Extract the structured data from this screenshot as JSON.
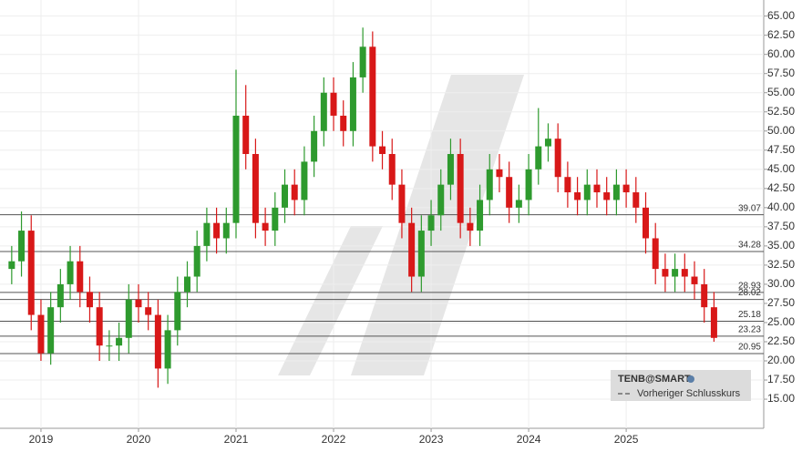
{
  "chart_data": {
    "type": "candlestick",
    "x": [
      2018.7,
      2018.8,
      2018.9,
      2019.0,
      2019.1,
      2019.2,
      2019.3,
      2019.4,
      2019.5,
      2019.6,
      2019.7,
      2019.8,
      2019.9,
      2020.0,
      2020.1,
      2020.2,
      2020.3,
      2020.4,
      2020.5,
      2020.6,
      2020.7,
      2020.8,
      2020.9,
      2021.0,
      2021.1,
      2021.2,
      2021.3,
      2021.4,
      2021.5,
      2021.6,
      2021.7,
      2021.8,
      2021.9,
      2022.0,
      2022.1,
      2022.2,
      2022.3,
      2022.4,
      2022.5,
      2022.6,
      2022.7,
      2022.8,
      2022.9,
      2023.0,
      2023.1,
      2023.2,
      2023.3,
      2023.4,
      2023.5,
      2023.6,
      2023.7,
      2023.8,
      2023.9,
      2024.0,
      2024.1,
      2024.2,
      2024.3,
      2024.4,
      2024.5,
      2024.6,
      2024.7,
      2024.8,
      2024.9,
      2025.0,
      2025.1,
      2025.2,
      2025.3,
      2025.4,
      2025.5,
      2025.6,
      2025.7,
      2025.8,
      2025.9
    ],
    "open": [
      32,
      33,
      37,
      26,
      21,
      27,
      30,
      33,
      29,
      27,
      22,
      22,
      23,
      28,
      27,
      26,
      19,
      24,
      29,
      31,
      35,
      38,
      36,
      38,
      52,
      47,
      38,
      37,
      40,
      43,
      41,
      46,
      50,
      55,
      52,
      50,
      57,
      61,
      48,
      47,
      43,
      38,
      31,
      37,
      39,
      43,
      47,
      38,
      37,
      41,
      45,
      44,
      40,
      41,
      45,
      48,
      49,
      44,
      42,
      41,
      43,
      42,
      41,
      43,
      42,
      40,
      36,
      32,
      31,
      32,
      31,
      30,
      27
    ],
    "high": [
      35,
      39.5,
      39,
      28,
      29,
      32,
      35,
      35,
      31,
      29,
      24,
      25,
      30,
      30,
      29,
      28,
      26,
      31,
      33,
      37,
      40,
      40,
      40,
      58,
      56,
      49,
      40,
      42,
      45,
      45,
      48,
      52,
      57,
      57,
      54,
      59,
      63.5,
      63,
      50,
      49,
      45,
      40,
      39,
      41,
      45,
      49,
      49,
      40,
      43,
      47,
      47,
      46,
      43,
      47,
      53,
      51,
      51,
      46,
      44,
      45,
      45,
      44,
      45,
      45,
      44,
      42,
      38,
      34,
      34,
      34,
      33,
      32,
      29
    ],
    "low": [
      30,
      31,
      24,
      20,
      19.5,
      25,
      28,
      27,
      25,
      20,
      20,
      20,
      21,
      25,
      24,
      16.5,
      17,
      22,
      27,
      29,
      33,
      34,
      34,
      36,
      45,
      36,
      35,
      35,
      38,
      39,
      39,
      44,
      48,
      50,
      48,
      48,
      55,
      46,
      45,
      41,
      36,
      29,
      29,
      35,
      37,
      41,
      36,
      35,
      35,
      39,
      42,
      38,
      38,
      39,
      43,
      46,
      42,
      40,
      39,
      39,
      40,
      39,
      39,
      40,
      38,
      34,
      30,
      29,
      29,
      29,
      28,
      25,
      22.5
    ],
    "close": [
      33,
      37,
      26,
      21,
      27,
      30,
      33,
      29,
      27,
      22,
      22,
      23,
      28,
      27,
      26,
      19,
      24,
      29,
      31,
      35,
      38,
      36,
      38,
      52,
      47,
      38,
      37,
      40,
      43,
      41,
      46,
      50,
      55,
      52,
      50,
      57,
      61,
      48,
      47,
      43,
      38,
      31,
      37,
      39,
      43,
      47,
      38,
      37,
      41,
      45,
      44,
      40,
      41,
      45,
      48,
      49,
      44,
      42,
      41,
      43,
      42,
      41,
      43,
      42,
      40,
      36,
      32,
      31,
      32,
      31,
      30,
      27,
      23
    ],
    "up_color": "#2e9a2e",
    "down_color": "#d81818",
    "xlim": [
      2018.58,
      2026.41
    ],
    "xticks": [
      2019,
      2020,
      2021,
      2022,
      2023,
      2024,
      2025
    ],
    "ylim": [
      11.2,
      67.1
    ],
    "yticks": [
      {
        "value": 15,
        "label": "15.00"
      },
      {
        "value": 17.5,
        "label": "17.50"
      },
      {
        "value": 20,
        "label": "20.00"
      },
      {
        "value": 22.5,
        "label": "22.50"
      },
      {
        "value": 25,
        "label": "25.00"
      },
      {
        "value": 27.5,
        "label": "27.50"
      },
      {
        "value": 30,
        "label": "30.00"
      },
      {
        "value": 32.5,
        "label": "32.50"
      },
      {
        "value": 35,
        "label": "35.00"
      },
      {
        "value": 37.5,
        "label": "37.50"
      },
      {
        "value": 40,
        "label": "40.00"
      },
      {
        "value": 42.5,
        "label": "42.50"
      },
      {
        "value": 45,
        "label": "45.00"
      },
      {
        "value": 47.5,
        "label": "47.50"
      },
      {
        "value": 50,
        "label": "50.00"
      },
      {
        "value": 52.5,
        "label": "52.50"
      },
      {
        "value": 55,
        "label": "55.00"
      },
      {
        "value": 57.5,
        "label": "57.50"
      },
      {
        "value": 60,
        "label": "60.00"
      },
      {
        "value": 62.5,
        "label": "62.50"
      },
      {
        "value": 65,
        "label": "65.00"
      }
    ],
    "levels": [
      39.07,
      34.28,
      28.93,
      28.02,
      25.18,
      23.23,
      20.95
    ],
    "grid": true,
    "legend": {
      "title": "TENB@SMART",
      "entry": "Vorheriger Schlusskurs",
      "position": "lower right"
    }
  }
}
